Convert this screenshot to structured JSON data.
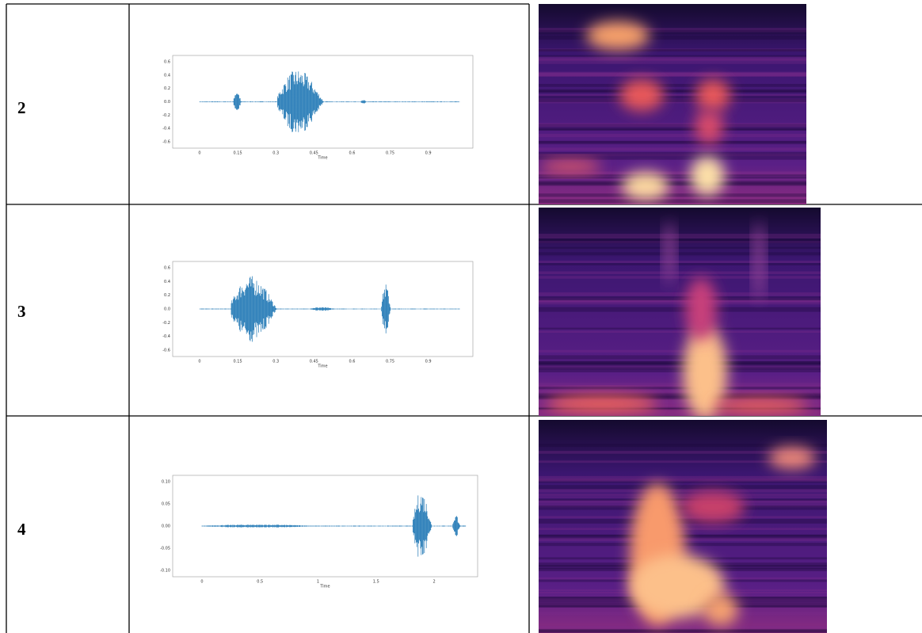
{
  "rows": [
    {
      "label": "2",
      "plot": {
        "yticks": [
          "0.6",
          "0.4",
          "0.2",
          "0.0",
          "-0.2",
          "-0.4",
          "-0.6"
        ],
        "xticks": [
          "0",
          "0.15",
          "0.3",
          "0.45",
          "0.6",
          "0.75",
          "0.9"
        ],
        "xlabel": "Time"
      }
    },
    {
      "label": "3",
      "plot": {
        "yticks": [
          "0.6",
          "0.4",
          "0.2",
          "0.0",
          "-0.2",
          "-0.4",
          "-0.6"
        ],
        "xticks": [
          "0",
          "0.15",
          "0.3",
          "0.45",
          "0.6",
          "0.75",
          "0.9"
        ],
        "xlabel": "Time"
      }
    },
    {
      "label": "4",
      "plot": {
        "yticks": [
          "0.10",
          "0.05",
          "0.00",
          "-0.05",
          "-0.10"
        ],
        "xticks": [
          "0",
          "0.5",
          "1",
          "1.5",
          "2"
        ],
        "xlabel": "Time"
      }
    }
  ]
}
